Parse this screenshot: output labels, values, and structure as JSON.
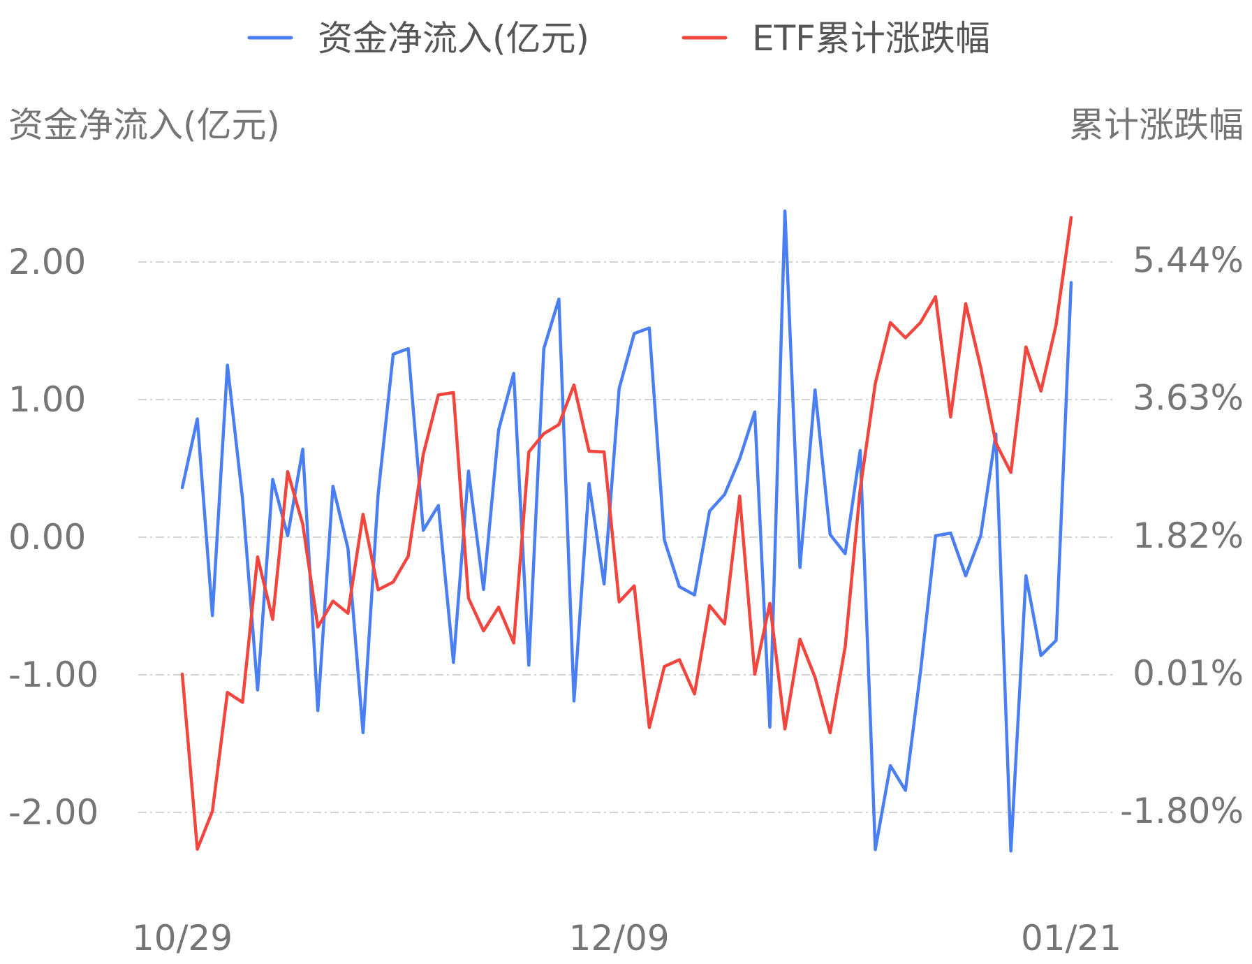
{
  "chart_data": {
    "type": "line",
    "legend": {
      "placement": "top-center",
      "items": [
        {
          "label": "资金净流入(亿元)",
          "color": "#4a7ff3"
        },
        {
          "label": "ETF累计涨跌幅",
          "color": "#f2453d"
        }
      ]
    },
    "y_left": {
      "title": "资金净流入(亿元)",
      "ticks": [
        "2.00",
        "1.00",
        "0.00",
        "-1.00",
        "-2.00"
      ],
      "tick_values": [
        2,
        1,
        0,
        -1,
        -2
      ],
      "range": [
        -2.35,
        2.35
      ]
    },
    "y_right": {
      "title": "累计涨跌幅",
      "ticks": [
        "5.44%",
        "3.63%",
        "1.82%",
        "0.01%",
        "-1.80%"
      ],
      "tick_values": [
        5.44,
        3.63,
        1.82,
        0.01,
        -1.8
      ],
      "range": [
        -2.45,
        6.05
      ]
    },
    "x_ticks": [
      {
        "label": "10/29",
        "index": 0
      },
      {
        "label": "12/09",
        "index": 29
      },
      {
        "label": "01/21",
        "index": 59
      }
    ],
    "grid": true,
    "series": [
      {
        "name": "资金净流入(亿元)",
        "axis": "left",
        "color": "#4a7ff3",
        "values": [
          0.36,
          0.86,
          -0.57,
          1.25,
          0.28,
          -1.11,
          0.42,
          0.01,
          0.64,
          -1.26,
          0.37,
          -0.08,
          -1.42,
          0.31,
          1.33,
          1.37,
          0.05,
          0.23,
          -0.91,
          0.48,
          -0.38,
          0.78,
          1.19,
          -0.93,
          1.37,
          1.73,
          -1.19,
          0.39,
          -0.34,
          1.08,
          1.48,
          1.52,
          -0.02,
          -0.36,
          -0.42,
          0.19,
          0.31,
          0.57,
          0.91,
          -1.38,
          2.37,
          -0.22,
          1.07,
          0.02,
          -0.12,
          0.63,
          -2.27,
          -1.66,
          -1.84,
          -0.98,
          0.01,
          0.03,
          -0.28,
          0.01,
          0.75,
          -2.28,
          -0.28,
          -0.86,
          -0.75,
          1.85
        ]
      },
      {
        "name": "ETF累计涨跌幅",
        "axis": "right",
        "color": "#f2453d",
        "values": [
          0.0,
          -2.3,
          -1.8,
          -0.24,
          -0.37,
          1.54,
          0.72,
          2.66,
          1.97,
          0.62,
          0.96,
          0.8,
          2.1,
          1.11,
          1.21,
          1.55,
          2.89,
          3.67,
          3.7,
          1.0,
          0.57,
          0.88,
          0.41,
          2.92,
          3.16,
          3.28,
          3.8,
          2.93,
          2.92,
          0.95,
          1.16,
          -0.7,
          0.1,
          0.19,
          -0.26,
          0.9,
          0.66,
          2.34,
          0.0,
          0.93,
          -0.72,
          0.46,
          -0.04,
          -0.77,
          0.36,
          2.43,
          3.82,
          4.62,
          4.42,
          4.62,
          4.96,
          3.38,
          4.87,
          4.03,
          3.04,
          2.65,
          4.3,
          3.72,
          4.59,
          6.0
        ]
      }
    ]
  }
}
